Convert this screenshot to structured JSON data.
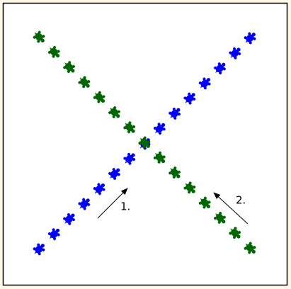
{
  "annotations": [
    "1.",
    "2."
  ]
}
